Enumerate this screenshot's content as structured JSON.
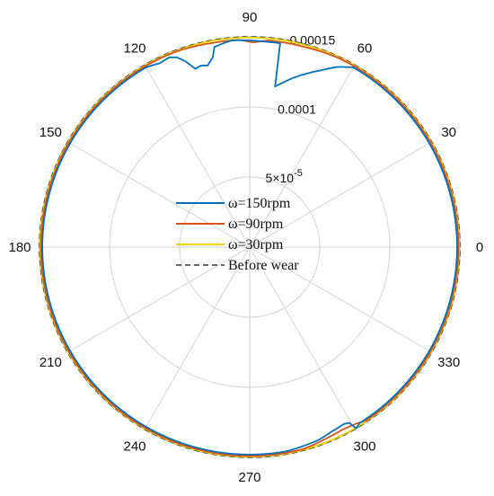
{
  "chart_data": {
    "type": "polar-line",
    "theta_unit": "degrees",
    "rlim": [
      0,
      0.00015
    ],
    "rticks": [
      {
        "value": 5e-05,
        "label": "5×10",
        "exp": "-5"
      },
      {
        "value": 0.0001,
        "label": "0.0001",
        "exp": ""
      },
      {
        "value": 0.00015,
        "label": "0.00015",
        "exp": ""
      }
    ],
    "theta_ticks": [
      0,
      30,
      60,
      90,
      120,
      150,
      180,
      210,
      240,
      270,
      300,
      330
    ],
    "theta_tick_labels": [
      "0",
      "30",
      "60",
      "90",
      "120",
      "150",
      "180",
      "210",
      "240",
      "270",
      "300",
      "330"
    ],
    "grid": true,
    "legend_position": "center",
    "series": [
      {
        "name": "ω=150rpm",
        "color": "#0072BD",
        "style": "solid",
        "base_r": 0.000148,
        "deviations": [
          {
            "theta": 60,
            "r": 0.000148
          },
          {
            "theta": 64,
            "r": 0.000143
          },
          {
            "theta": 68,
            "r": 0.000136
          },
          {
            "theta": 72,
            "r": 0.00013
          },
          {
            "theta": 76,
            "r": 0.000124
          },
          {
            "theta": 79,
            "r": 0.000119
          },
          {
            "theta": 81,
            "r": 0.000116
          },
          {
            "theta": 81.5,
            "r": 0.000147
          },
          {
            "theta": 86,
            "r": 0.000147
          },
          {
            "theta": 95,
            "r": 0.000148
          },
          {
            "theta": 100,
            "r": 0.000145
          },
          {
            "theta": 101,
            "r": 0.000138
          },
          {
            "theta": 103,
            "r": 0.000133
          },
          {
            "theta": 105,
            "r": 0.000134
          },
          {
            "theta": 107,
            "r": 0.000133
          },
          {
            "theta": 109,
            "r": 0.00014
          },
          {
            "theta": 111,
            "r": 0.000145
          },
          {
            "theta": 113,
            "r": 0.000147
          },
          {
            "theta": 116,
            "r": 0.000146
          },
          {
            "theta": 120,
            "r": 0.000148
          },
          {
            "theta": 280,
            "r": 0.000148
          },
          {
            "theta": 285,
            "r": 0.000147
          },
          {
            "theta": 290,
            "r": 0.000146
          },
          {
            "theta": 294,
            "r": 0.000144
          },
          {
            "theta": 298,
            "r": 0.000143
          },
          {
            "theta": 299.5,
            "r": 0.000144
          },
          {
            "theta": 300.5,
            "r": 0.00015
          },
          {
            "theta": 302,
            "r": 0.000148
          }
        ]
      },
      {
        "name": "ω=90rpm",
        "color": "#D95319",
        "style": "solid",
        "base_r": 0.000149,
        "deviations": [
          {
            "theta": 65,
            "r": 0.000149
          },
          {
            "theta": 75,
            "r": 0.000148
          },
          {
            "theta": 85,
            "r": 0.000148
          },
          {
            "theta": 89,
            "r": 0.000146
          },
          {
            "theta": 93,
            "r": 0.000148
          },
          {
            "theta": 100,
            "r": 0.000148
          },
          {
            "theta": 110,
            "r": 0.000149
          },
          {
            "theta": 285,
            "r": 0.000149
          },
          {
            "theta": 292,
            "r": 0.000147
          },
          {
            "theta": 297,
            "r": 0.000146
          },
          {
            "theta": 301,
            "r": 0.000147
          },
          {
            "theta": 304,
            "r": 0.000149
          }
        ]
      },
      {
        "name": "ω=30rpm",
        "color": "#EDD500",
        "style": "solid",
        "base_r": 0.0001495,
        "deviations": []
      },
      {
        "name": "Before wear",
        "color": "#111111",
        "style": "dashed",
        "base_r": 0.00015,
        "deviations": []
      }
    ]
  }
}
